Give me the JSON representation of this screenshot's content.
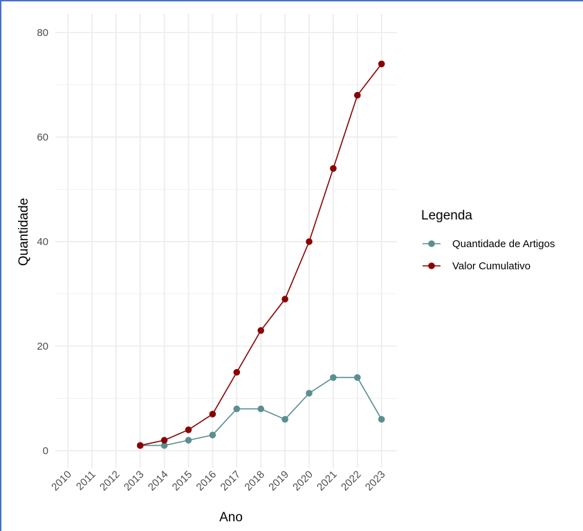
{
  "chart_data": {
    "type": "line",
    "title": "",
    "xlabel": "Ano",
    "ylabel": "Quantidade",
    "x": [
      "2010",
      "2011",
      "2012",
      "2013",
      "2014",
      "2015",
      "2016",
      "2017",
      "2018",
      "2019",
      "2020",
      "2021",
      "2022",
      "2023"
    ],
    "ylim": [
      0,
      80
    ],
    "yticks": [
      0,
      20,
      40,
      60,
      80
    ],
    "grid": true,
    "legend_title": "Legenda",
    "legend_position": "right",
    "series": [
      {
        "name": "Quantidade de Artigos",
        "color": "#5b8e91",
        "points": [
          [
            2013,
            1
          ],
          [
            2014,
            1
          ],
          [
            2015,
            2
          ],
          [
            2016,
            3
          ],
          [
            2017,
            8
          ],
          [
            2018,
            8
          ],
          [
            2019,
            6
          ],
          [
            2020,
            11
          ],
          [
            2021,
            14
          ],
          [
            2022,
            14
          ],
          [
            2023,
            6
          ]
        ]
      },
      {
        "name": "Valor Cumulativo",
        "color": "#8b0000",
        "points": [
          [
            2013,
            1
          ],
          [
            2014,
            2
          ],
          [
            2015,
            4
          ],
          [
            2016,
            7
          ],
          [
            2017,
            15
          ],
          [
            2018,
            23
          ],
          [
            2019,
            29
          ],
          [
            2020,
            40
          ],
          [
            2021,
            54
          ],
          [
            2022,
            68
          ],
          [
            2023,
            74
          ]
        ]
      }
    ]
  }
}
